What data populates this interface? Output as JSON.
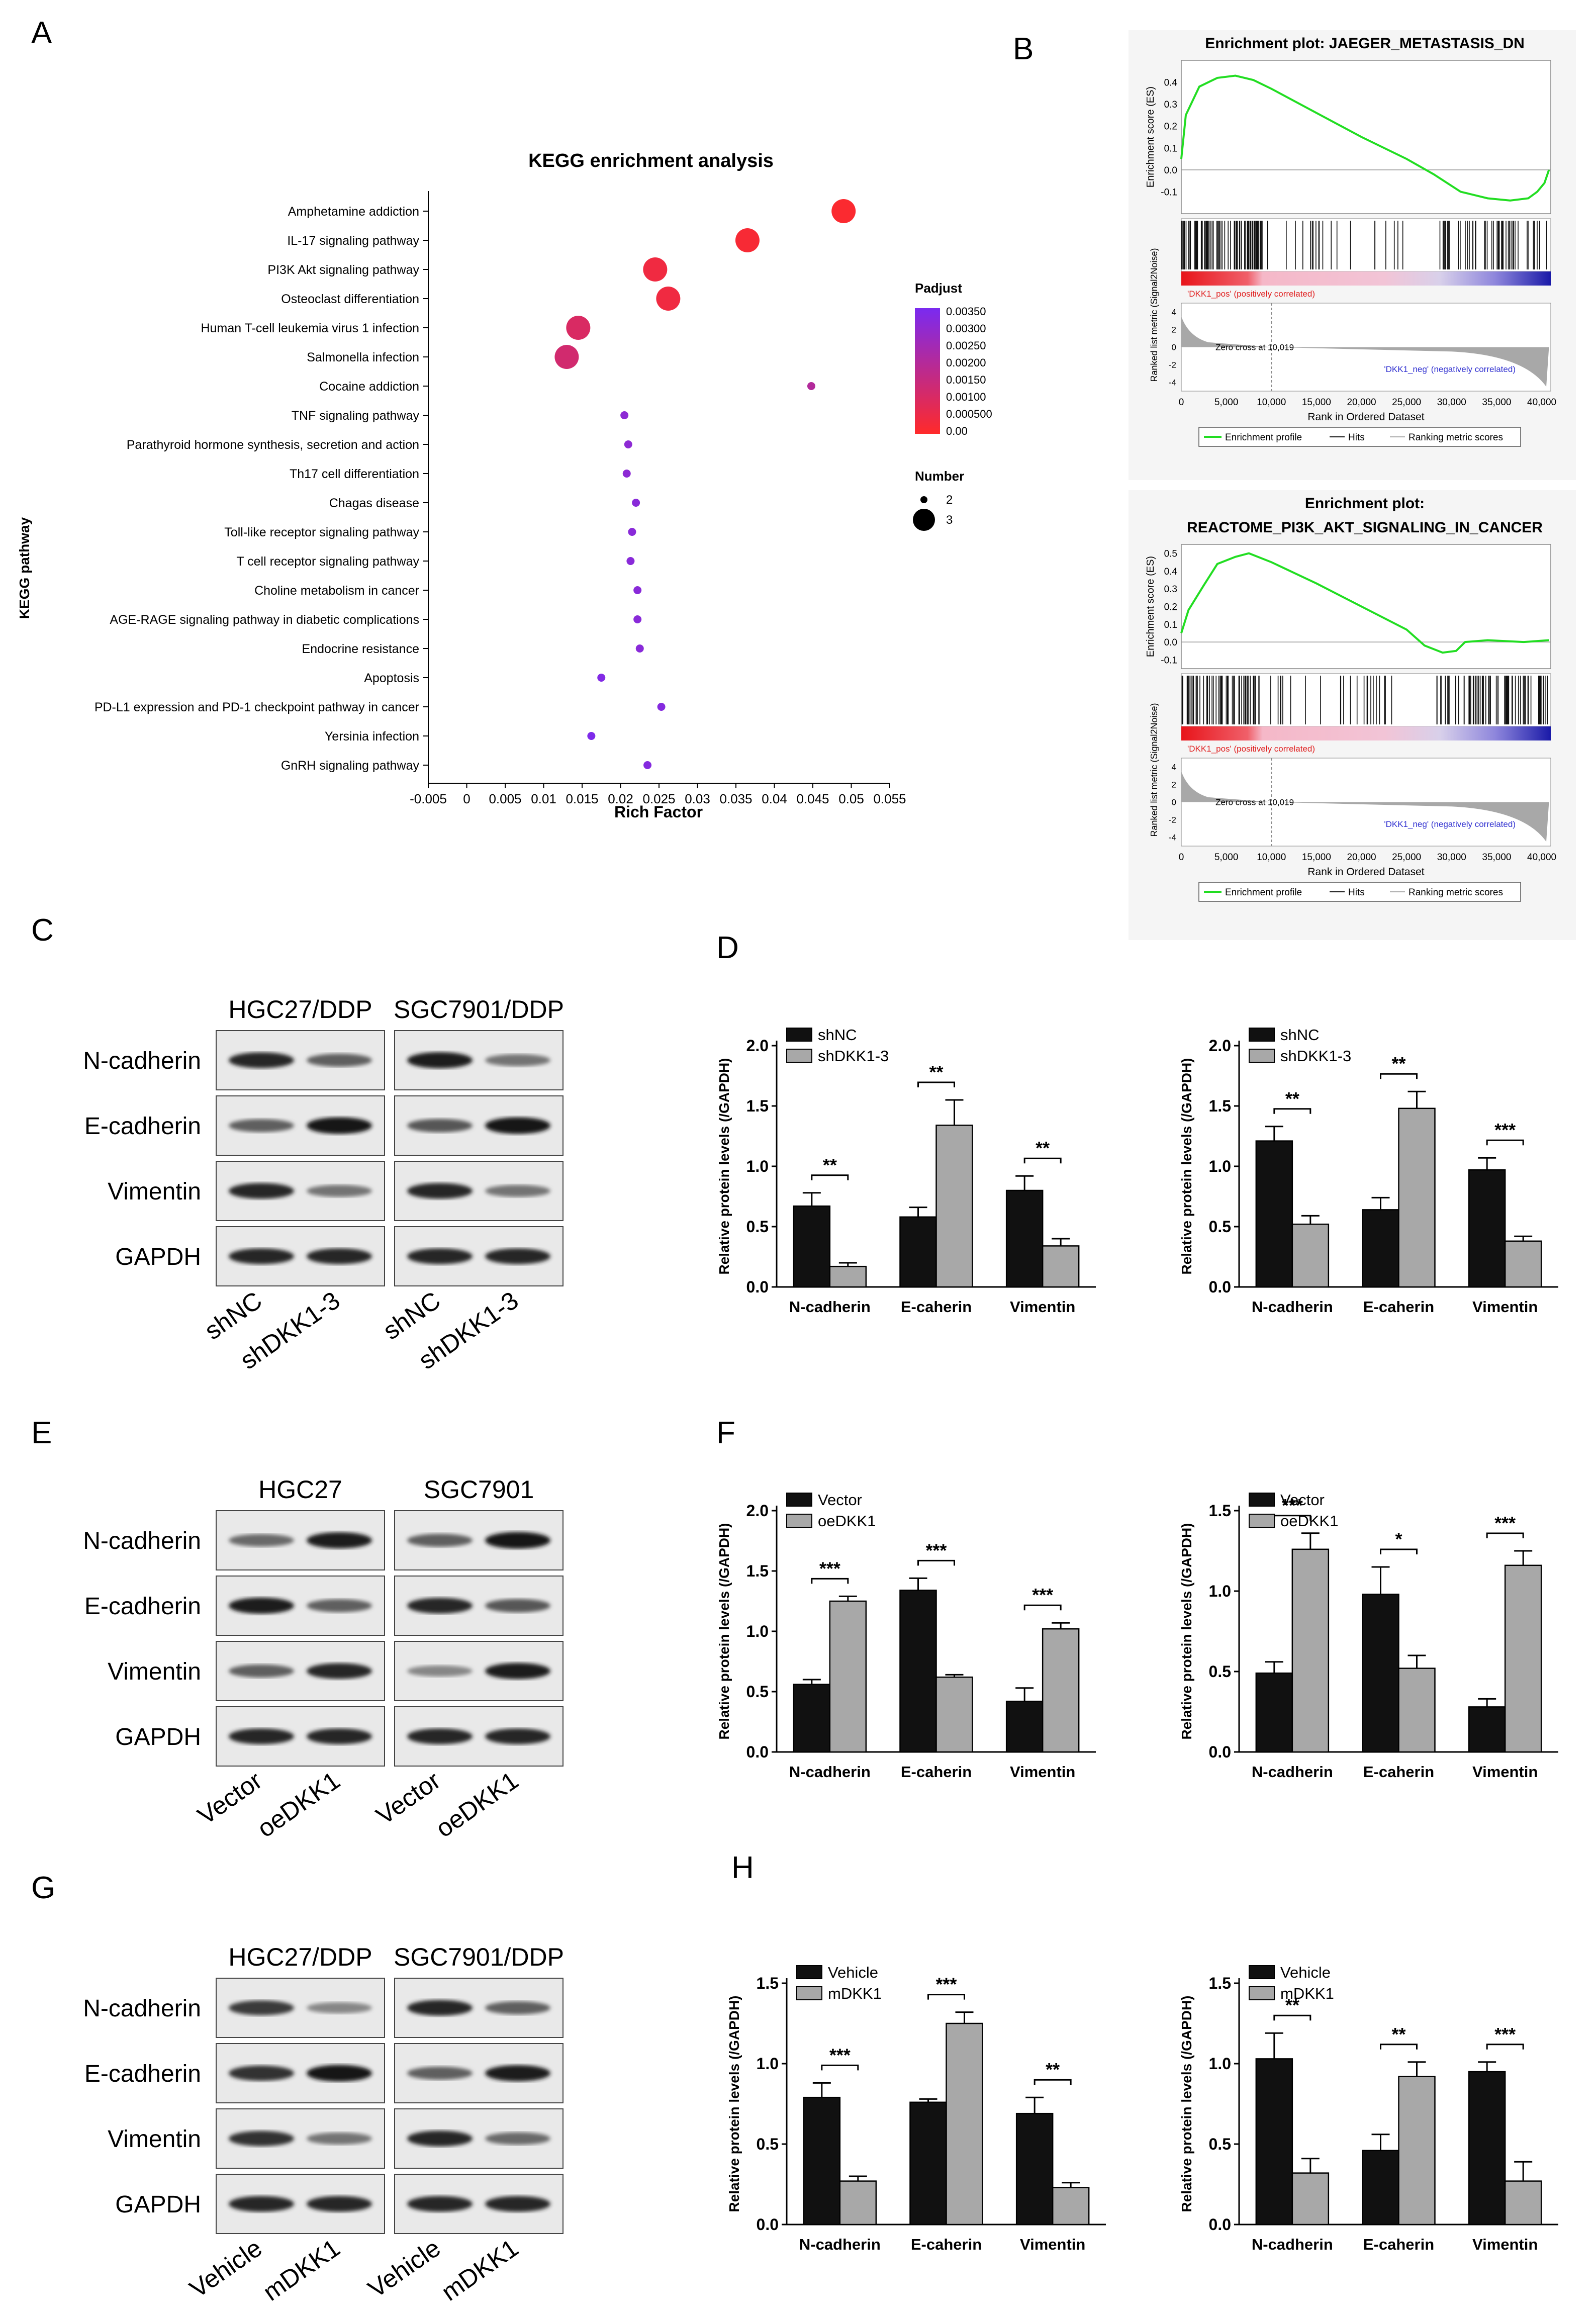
{
  "panel_labels": [
    "A",
    "B",
    "C",
    "D",
    "E",
    "F",
    "G",
    "H"
  ],
  "colors": {
    "bar_dark": "#111111",
    "bar_light": "#a8a8a8",
    "gsea_line": "#22dd22",
    "dot_high": "#ff2a2a",
    "dot_low": "#7a2af0"
  },
  "panelA": {
    "chart_data": {
      "type": "scatter",
      "title": "KEGG enrichment analysis",
      "xlabel": "Rich Factor",
      "ylabel": "KEGG pathway",
      "xlim": [
        -0.005,
        0.055
      ],
      "xticks": [
        "-0.005",
        "0",
        "0.005",
        "0.01",
        "0.015",
        "0.02",
        "0.025",
        "0.03",
        "0.035",
        "0.04",
        "0.045",
        "0.05",
        "0.055"
      ],
      "legend_color_title": "Padjust",
      "legend_color_ticks": [
        "0.00350",
        "0.00300",
        "0.00250",
        "0.00200",
        "0.00150",
        "0.00100",
        "0.000500",
        "0.00"
      ],
      "legend_size_title": "Number",
      "legend_size_ticks": [
        "2",
        "3"
      ],
      "pathways": [
        {
          "name": "Amphetamine addiction",
          "rich": 0.049,
          "number": 3,
          "padj": 0.0001
        },
        {
          "name": "IL-17 signaling pathway",
          "rich": 0.0365,
          "number": 3,
          "padj": 0.0002
        },
        {
          "name": "PI3K Akt signaling pathway",
          "rich": 0.0245,
          "number": 3,
          "padj": 0.0004
        },
        {
          "name": "Osteoclast differentiation",
          "rich": 0.0262,
          "number": 3,
          "padj": 0.0004
        },
        {
          "name": "Human T-cell leukemia virus 1 infection",
          "rich": 0.0145,
          "number": 3,
          "padj": 0.001
        },
        {
          "name": "Salmonella infection",
          "rich": 0.013,
          "number": 3,
          "padj": 0.0012
        },
        {
          "name": "Cocaine addiction",
          "rich": 0.0448,
          "number": 2,
          "padj": 0.002
        },
        {
          "name": "TNF signaling pathway",
          "rich": 0.0205,
          "number": 2,
          "padj": 0.003
        },
        {
          "name": "Parathyroid hormone synthesis, secretion and action",
          "rich": 0.021,
          "number": 2,
          "padj": 0.003
        },
        {
          "name": "Th17 cell differentiation",
          "rich": 0.0208,
          "number": 2,
          "padj": 0.003
        },
        {
          "name": "Chagas disease",
          "rich": 0.022,
          "number": 2,
          "padj": 0.0031
        },
        {
          "name": "Toll-like receptor signaling pathway",
          "rich": 0.0215,
          "number": 2,
          "padj": 0.0031
        },
        {
          "name": "T cell receptor signaling pathway",
          "rich": 0.0213,
          "number": 2,
          "padj": 0.0031
        },
        {
          "name": "Choline metabolism in cancer",
          "rich": 0.0222,
          "number": 2,
          "padj": 0.0031
        },
        {
          "name": "AGE-RAGE signaling pathway in diabetic complications",
          "rich": 0.0222,
          "number": 2,
          "padj": 0.0031
        },
        {
          "name": "Endocrine resistance",
          "rich": 0.0225,
          "number": 2,
          "padj": 0.0031
        },
        {
          "name": "Apoptosis",
          "rich": 0.0175,
          "number": 2,
          "padj": 0.0033
        },
        {
          "name": "PD-L1 expression and PD-1 checkpoint pathway in cancer",
          "rich": 0.0253,
          "number": 2,
          "padj": 0.0032
        },
        {
          "name": "Yersinia infection",
          "rich": 0.0162,
          "number": 2,
          "padj": 0.0034
        },
        {
          "name": "GnRH signaling pathway",
          "rich": 0.0235,
          "number": 2,
          "padj": 0.0032
        }
      ]
    }
  },
  "panelB": {
    "chart_data": [
      {
        "type": "line",
        "title_lines": [
          "Enrichment plot: JAEGER_METASTASIS_DN"
        ],
        "ylabel_top": "Enrichment score (ES)",
        "ylabel_bottom": "Ranked list metric (Signal2Noise)",
        "xlabel": "Rank in Ordered Dataset",
        "es_ticks": [
          "0.4",
          "0.3",
          "0.2",
          "0.1",
          "0.0",
          "-0.1"
        ],
        "metric_ticks": [
          "4",
          "2",
          "0",
          "-2",
          "-4"
        ],
        "x_ticks": [
          "0",
          "5,000",
          "10,000",
          "15,000",
          "20,000",
          "25,000",
          "30,000",
          "35,000",
          "40,000"
        ],
        "xlim": [
          0,
          41000
        ],
        "es_lim": [
          -0.2,
          0.5
        ],
        "es_curve": [
          [
            0,
            0.05
          ],
          [
            500,
            0.25
          ],
          [
            2000,
            0.38
          ],
          [
            4000,
            0.42
          ],
          [
            6000,
            0.43
          ],
          [
            8000,
            0.41
          ],
          [
            10000,
            0.37
          ],
          [
            15000,
            0.26
          ],
          [
            20000,
            0.15
          ],
          [
            25000,
            0.05
          ],
          [
            28000,
            -0.02
          ],
          [
            31000,
            -0.1
          ],
          [
            34000,
            -0.13
          ],
          [
            36500,
            -0.14
          ],
          [
            38500,
            -0.13
          ],
          [
            39500,
            -0.1
          ],
          [
            40300,
            -0.06
          ],
          [
            40800,
            0.0
          ]
        ],
        "pos_label": "'DKK1_pos' (positively correlated)",
        "neg_label": "'DKK1_neg' (negatively correlated)",
        "zero_cross": "Zero cross at 10,019",
        "legend": [
          "Enrichment profile",
          "Hits",
          "Ranking metric scores"
        ]
      },
      {
        "type": "line",
        "title_lines": [
          "Enrichment plot:",
          "REACTOME_PI3K_AKT_SIGNALING_IN_CANCER"
        ],
        "ylabel_top": "Enrichment score (ES)",
        "ylabel_bottom": "Ranked list metric (Signal2Noise)",
        "xlabel": "Rank in Ordered Dataset",
        "es_ticks": [
          "0.5",
          "0.4",
          "0.3",
          "0.2",
          "0.1",
          "0.0",
          "-0.1"
        ],
        "metric_ticks": [
          "4",
          "2",
          "0",
          "-2",
          "-4"
        ],
        "x_ticks": [
          "0",
          "5,000",
          "10,000",
          "15,000",
          "20,000",
          "25,000",
          "30,000",
          "35,000",
          "40,000"
        ],
        "xlim": [
          0,
          41000
        ],
        "es_lim": [
          -0.15,
          0.55
        ],
        "es_curve": [
          [
            0,
            0.05
          ],
          [
            800,
            0.18
          ],
          [
            2500,
            0.32
          ],
          [
            4000,
            0.44
          ],
          [
            6000,
            0.48
          ],
          [
            7500,
            0.5
          ],
          [
            10000,
            0.45
          ],
          [
            15000,
            0.33
          ],
          [
            20000,
            0.2
          ],
          [
            25000,
            0.07
          ],
          [
            27000,
            -0.02
          ],
          [
            29000,
            -0.06
          ],
          [
            30500,
            -0.05
          ],
          [
            31500,
            0.0
          ],
          [
            34000,
            0.01
          ],
          [
            38000,
            0.0
          ],
          [
            40800,
            0.01
          ]
        ],
        "pos_label": "'DKK1_pos' (positively correlated)",
        "neg_label": "'DKK1_neg' (negatively correlated)",
        "zero_cross": "Zero cross at 10,019",
        "legend": [
          "Enrichment profile",
          "Hits",
          "Ranking metric scores"
        ]
      }
    ]
  },
  "blots": {
    "C": {
      "cells": [
        "HGC27/DDP",
        "SGC7901/DDP"
      ],
      "proteins": [
        "N-cadherin",
        "E-cadherin",
        "Vimentin",
        "GAPDH"
      ],
      "conditions": [
        "shNC",
        "shDKK1-3",
        "shNC",
        "shDKK1-3"
      ]
    },
    "E": {
      "cells": [
        "HGC27",
        "SGC7901"
      ],
      "proteins": [
        "N-cadherin",
        "E-cadherin",
        "Vimentin",
        "GAPDH"
      ],
      "conditions": [
        "Vector",
        "oeDKK1",
        "Vector",
        "oeDKK1"
      ]
    },
    "G": {
      "cells": [
        "HGC27/DDP",
        "SGC7901/DDP"
      ],
      "proteins": [
        "N-cadherin",
        "E-cadherin",
        "Vimentin",
        "GAPDH"
      ],
      "conditions": [
        "Vehicle",
        "mDKK1",
        "Vehicle",
        "mDKK1"
      ]
    }
  },
  "bar_charts": {
    "chart_data": [
      {
        "type": "bar",
        "id": "D1",
        "ylabel": "Relative protein levels (/GAPDH)",
        "categories": [
          "N-cadherin",
          "E-caherin",
          "Vimentin"
        ],
        "ylim": [
          0,
          2.0
        ],
        "yticks": [
          "0.0",
          "0.5",
          "1.0",
          "1.5",
          "2.0"
        ],
        "series": [
          {
            "name": "shNC",
            "values": [
              0.67,
              0.58,
              0.8
            ],
            "errors": [
              0.11,
              0.08,
              0.12
            ]
          },
          {
            "name": "shDKK1-3",
            "values": [
              0.17,
              1.34,
              0.34
            ],
            "errors": [
              0.03,
              0.21,
              0.06
            ]
          }
        ],
        "sig": [
          "**",
          "**",
          "**"
        ]
      },
      {
        "type": "bar",
        "id": "D2",
        "ylabel": "Relative protein levels (/GAPDH)",
        "categories": [
          "N-cadherin",
          "E-caherin",
          "Vimentin"
        ],
        "ylim": [
          0,
          2.0
        ],
        "yticks": [
          "0.0",
          "0.5",
          "1.0",
          "1.5",
          "2.0"
        ],
        "series": [
          {
            "name": "shNC",
            "values": [
              1.21,
              0.64,
              0.97
            ],
            "errors": [
              0.12,
              0.1,
              0.1
            ]
          },
          {
            "name": "shDKK1-3",
            "values": [
              0.52,
              1.48,
              0.38
            ],
            "errors": [
              0.07,
              0.14,
              0.04
            ]
          }
        ],
        "sig": [
          "**",
          "**",
          "***"
        ]
      },
      {
        "type": "bar",
        "id": "F1",
        "ylabel": "Relative protein levels (/GAPDH)",
        "categories": [
          "N-cadherin",
          "E-caherin",
          "Vimentin"
        ],
        "ylim": [
          0,
          2.0
        ],
        "yticks": [
          "0.0",
          "0.5",
          "1.0",
          "1.5",
          "2.0"
        ],
        "series": [
          {
            "name": "Vector",
            "values": [
              0.56,
              1.34,
              0.42
            ],
            "errors": [
              0.04,
              0.1,
              0.11
            ]
          },
          {
            "name": "oeDKK1",
            "values": [
              1.25,
              0.62,
              1.02
            ],
            "errors": [
              0.04,
              0.02,
              0.05
            ]
          }
        ],
        "sig": [
          "***",
          "***",
          "***"
        ]
      },
      {
        "type": "bar",
        "id": "F2",
        "ylabel": "Relative protein levels (/GAPDH)",
        "categories": [
          "N-cadherin",
          "E-caherin",
          "Vimentin"
        ],
        "ylim": [
          0,
          1.5
        ],
        "yticks": [
          "0.0",
          "0.5",
          "1.0",
          "1.5"
        ],
        "series": [
          {
            "name": "Vector",
            "values": [
              0.49,
              0.98,
              0.28
            ],
            "errors": [
              0.07,
              0.17,
              0.05
            ]
          },
          {
            "name": "oeDKK1",
            "values": [
              1.26,
              0.52,
              1.16
            ],
            "errors": [
              0.1,
              0.08,
              0.09
            ]
          }
        ],
        "sig": [
          "***",
          "*",
          "***"
        ]
      },
      {
        "type": "bar",
        "id": "H1",
        "ylabel": "Relative protein levels (/GAPDH)",
        "categories": [
          "N-cadherin",
          "E-caherin",
          "Vimentin"
        ],
        "ylim": [
          0,
          1.5
        ],
        "yticks": [
          "0.0",
          "0.5",
          "1.0",
          "1.5"
        ],
        "series": [
          {
            "name": "Vehicle",
            "values": [
              0.79,
              0.76,
              0.69
            ],
            "errors": [
              0.09,
              0.02,
              0.1
            ]
          },
          {
            "name": "mDKK1",
            "values": [
              0.27,
              1.25,
              0.23
            ],
            "errors": [
              0.03,
              0.07,
              0.03
            ]
          }
        ],
        "sig": [
          "***",
          "***",
          "**"
        ]
      },
      {
        "type": "bar",
        "id": "H2",
        "ylabel": "Relative protein levels (/GAPDH)",
        "categories": [
          "N-cadherin",
          "E-caherin",
          "Vimentin"
        ],
        "ylim": [
          0,
          1.5
        ],
        "yticks": [
          "0.0",
          "0.5",
          "1.0",
          "1.5"
        ],
        "series": [
          {
            "name": "Vehicle",
            "values": [
              1.03,
              0.46,
              0.95
            ],
            "errors": [
              0.16,
              0.1,
              0.06
            ]
          },
          {
            "name": "mDKK1",
            "values": [
              0.32,
              0.92,
              0.27
            ],
            "errors": [
              0.09,
              0.09,
              0.12
            ]
          }
        ],
        "sig": [
          "**",
          "**",
          "***"
        ]
      }
    ]
  }
}
